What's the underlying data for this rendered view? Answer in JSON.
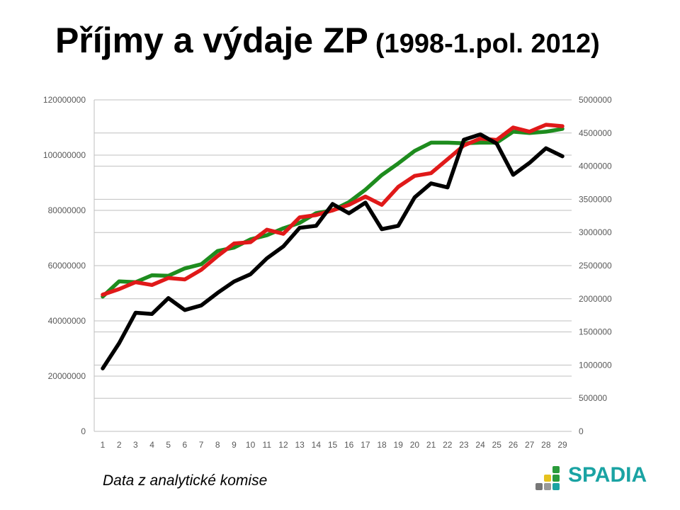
{
  "title": {
    "main": "Příjmy a výdaje ZP",
    "sub": "(1998-1.pol. 2012)"
  },
  "footer_text": "Data z analytické komise",
  "logo": {
    "text": "SPADIA"
  },
  "chart_data": {
    "type": "line",
    "x": [
      1,
      2,
      3,
      4,
      5,
      6,
      7,
      8,
      9,
      10,
      11,
      12,
      13,
      14,
      15,
      16,
      17,
      18,
      19,
      20,
      21,
      22,
      23,
      24,
      25,
      26,
      27,
      28,
      29
    ],
    "y_left": {
      "range": [
        0,
        120000000
      ],
      "ticks": [
        "0",
        "20000000",
        "40000000",
        "60000000",
        "80000000",
        "100000000",
        "120000000"
      ]
    },
    "y_right": {
      "range": [
        0,
        5000000
      ],
      "ticks": [
        "0",
        "500000",
        "1000000",
        "1500000",
        "2000000",
        "2500000",
        "3000000",
        "3500000",
        "4000000",
        "4500000",
        "5000000"
      ]
    },
    "grid": true,
    "legend": "none",
    "series": [
      {
        "color": "#1e8c1e",
        "axis": "left",
        "values": [
          48800000,
          54300000,
          54000000,
          56500000,
          56300000,
          59000000,
          60500000,
          65300000,
          66500000,
          69500000,
          71000000,
          73500000,
          75500000,
          79000000,
          80000000,
          83000000,
          87500000,
          92800000,
          97000000,
          101500000,
          104500000,
          104500000,
          104300000,
          104500000,
          104500000,
          108500000,
          108000000,
          108500000,
          109500000
        ]
      },
      {
        "color": "#e01919",
        "axis": "left",
        "values": [
          49500000,
          51500000,
          54000000,
          53000000,
          55500000,
          55000000,
          58500000,
          63500000,
          68000000,
          68500000,
          73000000,
          71500000,
          77500000,
          78300000,
          80000000,
          82000000,
          85000000,
          82000000,
          88500000,
          92500000,
          93500000,
          98500000,
          103500000,
          106000000,
          105500000,
          110000000,
          108500000,
          111000000,
          110500000
        ]
      },
      {
        "color": "#000000",
        "axis": "right",
        "values": [
          950000,
          1330000,
          1790000,
          1770000,
          2010000,
          1830000,
          1900000,
          2090000,
          2260000,
          2370000,
          2610000,
          2790000,
          3070000,
          3100000,
          3430000,
          3290000,
          3450000,
          3050000,
          3100000,
          3530000,
          3740000,
          3680000,
          4400000,
          4480000,
          4340000,
          3870000,
          4050000,
          4270000,
          4150000
        ]
      }
    ]
  }
}
